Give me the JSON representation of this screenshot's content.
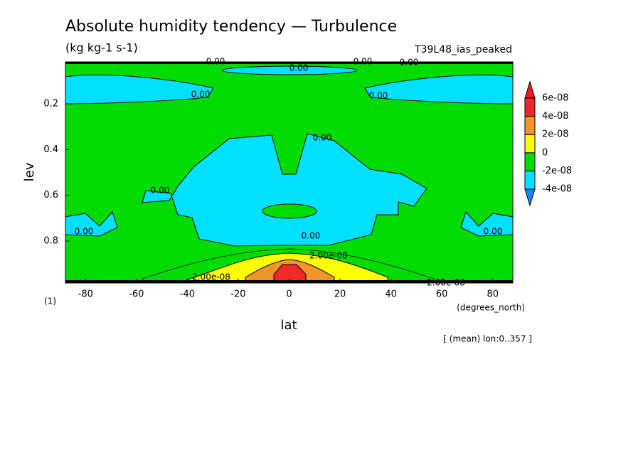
{
  "chart_data": {
    "type": "contour",
    "title": "Absolute humidity tendency — Turbulence",
    "subtitle": "(kg kg-1 s-1)",
    "experiment": "T39L48_ias_peaked",
    "note": "[ (mean) lon:0..357 ]",
    "x_label": "lat",
    "x_unit": "(degrees_north)",
    "y_label": "lev",
    "y_unit": "(1)",
    "xlim": [
      -87.9,
      87.9
    ],
    "xticks": [
      -80,
      -60,
      -40,
      -20,
      0,
      20,
      40,
      60,
      80
    ],
    "ylim": [
      0.017,
      0.983
    ],
    "y_inverted": true,
    "yticks": [
      0.2,
      0.4,
      0.6,
      0.8
    ],
    "levels": [
      {
        "value": -4e-08,
        "label": "-4e-08"
      },
      {
        "value": -2e-08,
        "label": "-2e-08"
      },
      0,
      {
        "value": 2e-08,
        "label": "2e-08"
      },
      {
        "value": 4e-08,
        "label": "4e-08"
      },
      {
        "value": 6e-08,
        "label": "6e-08"
      }
    ],
    "colors": [
      "#1e82ff",
      "#00e0ff",
      "#00dc00",
      "#ffff00",
      "#f09628",
      "#f02828",
      "#e61e1e"
    ],
    "contour_labels": [
      "0.00",
      "0.00",
      "0.00",
      "0.00",
      "0.00",
      "0.00",
      "0.00",
      "0.00",
      "0.00",
      "0.00",
      "0.00",
      "2.00e-08",
      "2.00e-08",
      "2.00e-08"
    ]
  }
}
